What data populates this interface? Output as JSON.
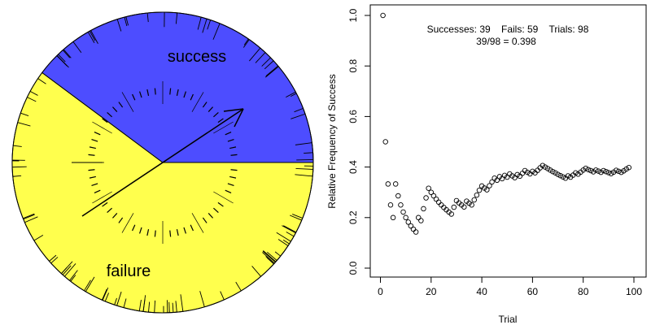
{
  "spinner": {
    "success_label": "success",
    "failure_label": "failure",
    "success_color": "#4d4dff",
    "failure_color": "#ffff4d",
    "success_fraction": 0.398
  },
  "annotation": {
    "line1": "Successes: 39    Fails: 59    Trials: 98",
    "line2": "39/98 = 0.398"
  },
  "chart_data": {
    "type": "scatter",
    "title": "",
    "xlabel": "Trial",
    "ylabel": "Relative Frequency of Success",
    "xlim": [
      0,
      100
    ],
    "ylim": [
      0,
      1
    ],
    "xticks": [
      "0",
      "20",
      "40",
      "60",
      "80",
      "100"
    ],
    "yticks": [
      "0.0",
      "0.2",
      "0.4",
      "0.6",
      "0.8",
      "1.0"
    ],
    "x": [
      1,
      2,
      3,
      4,
      5,
      6,
      7,
      8,
      9,
      10,
      11,
      12,
      13,
      14,
      15,
      16,
      17,
      18,
      19,
      20,
      21,
      22,
      23,
      24,
      25,
      26,
      27,
      28,
      29,
      30,
      31,
      32,
      33,
      34,
      35,
      36,
      37,
      38,
      39,
      40,
      41,
      42,
      43,
      44,
      45,
      46,
      47,
      48,
      49,
      50,
      51,
      52,
      53,
      54,
      55,
      56,
      57,
      58,
      59,
      60,
      61,
      62,
      63,
      64,
      65,
      66,
      67,
      68,
      69,
      70,
      71,
      72,
      73,
      74,
      75,
      76,
      77,
      78,
      79,
      80,
      81,
      82,
      83,
      84,
      85,
      86,
      87,
      88,
      89,
      90,
      91,
      92,
      93,
      94,
      95,
      96,
      97,
      98
    ],
    "y": [
      1.0,
      0.5,
      0.333,
      0.25,
      0.2,
      0.333,
      0.286,
      0.25,
      0.222,
      0.2,
      0.182,
      0.167,
      0.154,
      0.143,
      0.2,
      0.188,
      0.235,
      0.278,
      0.316,
      0.3,
      0.286,
      0.273,
      0.261,
      0.25,
      0.24,
      0.231,
      0.222,
      0.214,
      0.241,
      0.267,
      0.258,
      0.25,
      0.242,
      0.265,
      0.257,
      0.25,
      0.27,
      0.289,
      0.308,
      0.325,
      0.317,
      0.31,
      0.326,
      0.341,
      0.356,
      0.348,
      0.362,
      0.354,
      0.367,
      0.36,
      0.373,
      0.365,
      0.358,
      0.37,
      0.364,
      0.375,
      0.386,
      0.379,
      0.373,
      0.383,
      0.377,
      0.387,
      0.397,
      0.406,
      0.4,
      0.394,
      0.388,
      0.382,
      0.377,
      0.371,
      0.366,
      0.361,
      0.356,
      0.365,
      0.36,
      0.368,
      0.377,
      0.372,
      0.38,
      0.388,
      0.395,
      0.39,
      0.386,
      0.381,
      0.388,
      0.384,
      0.379,
      0.386,
      0.382,
      0.378,
      0.374,
      0.38,
      0.387,
      0.383,
      0.379,
      0.385,
      0.392,
      0.398
    ]
  }
}
